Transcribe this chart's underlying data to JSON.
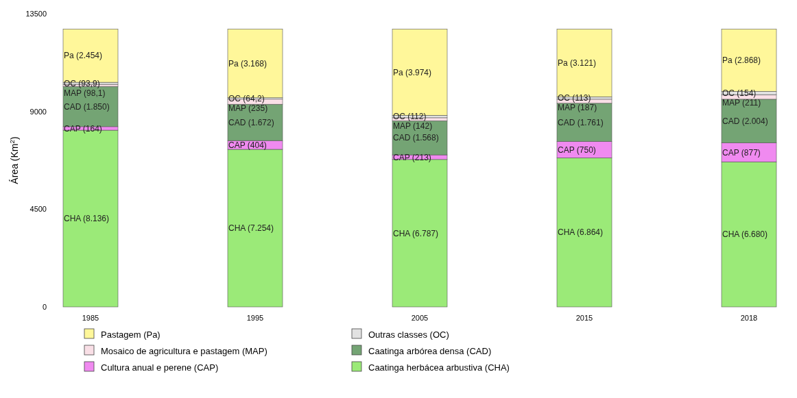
{
  "chart_data": {
    "type": "bar",
    "stacked": true,
    "ylabel": "Área (Km$^{2}$)",
    "categories": [
      "1985",
      "1995",
      "2005",
      "2015",
      "2018"
    ],
    "ylim": [
      0,
      13500
    ],
    "yticks": [
      0,
      4500,
      9000,
      13500
    ],
    "grid": false,
    "legend": "bottom",
    "series": [
      {
        "name": "Caatinga herbácea arbustiva (CHA)",
        "color": "#9bea78",
        "values": [
          8136,
          7254,
          6787,
          6864,
          6680
        ],
        "value_labels": [
          "CHA (8.136)",
          "CHA (7.254)",
          "CHA (6.787)",
          "CHA (6.864)",
          "CHA (6.680)"
        ]
      },
      {
        "name": "Cultura anual e perene (CAP)",
        "color": "#f08af0",
        "values": [
          164,
          404,
          213,
          750,
          877
        ],
        "value_labels": [
          "CAP (164)",
          "CAP (404)",
          "CAP (213)",
          "CAP (750)",
          "CAP (877)"
        ]
      },
      {
        "name": "Caatinga arbórea densa (CAD)",
        "color": "#74a474",
        "values": [
          1850,
          1672,
          1568,
          1761,
          2004
        ],
        "value_labels": [
          "CAD (1.850)",
          "CAD (1.672)",
          "CAD (1.568)",
          "CAD (1.761)",
          "CAD (2.004)"
        ]
      },
      {
        "name": "Mosaico de agricultura e pastagem (MAP)",
        "color": "#f9dfe6",
        "values": [
          98.1,
          235,
          142,
          187,
          211
        ],
        "value_labels": [
          "MAP (98,1)",
          "MAP (235)",
          "MAP (142)",
          "MAP (187)",
          "MAP (211)"
        ]
      },
      {
        "name": "Outras classes (OC)",
        "color": "#e2e2e2",
        "values": [
          93.9,
          64.2,
          112,
          113,
          154
        ],
        "value_labels": [
          "OC (93,9)",
          "OC (64,2)",
          "OC (112)",
          "OC (113)",
          "OC (154)"
        ]
      },
      {
        "name": "Pastagem (Pa)",
        "color": "#fff79a",
        "values": [
          2454,
          3168,
          3974,
          3121,
          2868
        ],
        "value_labels": [
          "Pa (2.454)",
          "Pa (3.168)",
          "Pa (3.974)",
          "Pa (3.121)",
          "Pa (2.868)"
        ]
      }
    ]
  }
}
